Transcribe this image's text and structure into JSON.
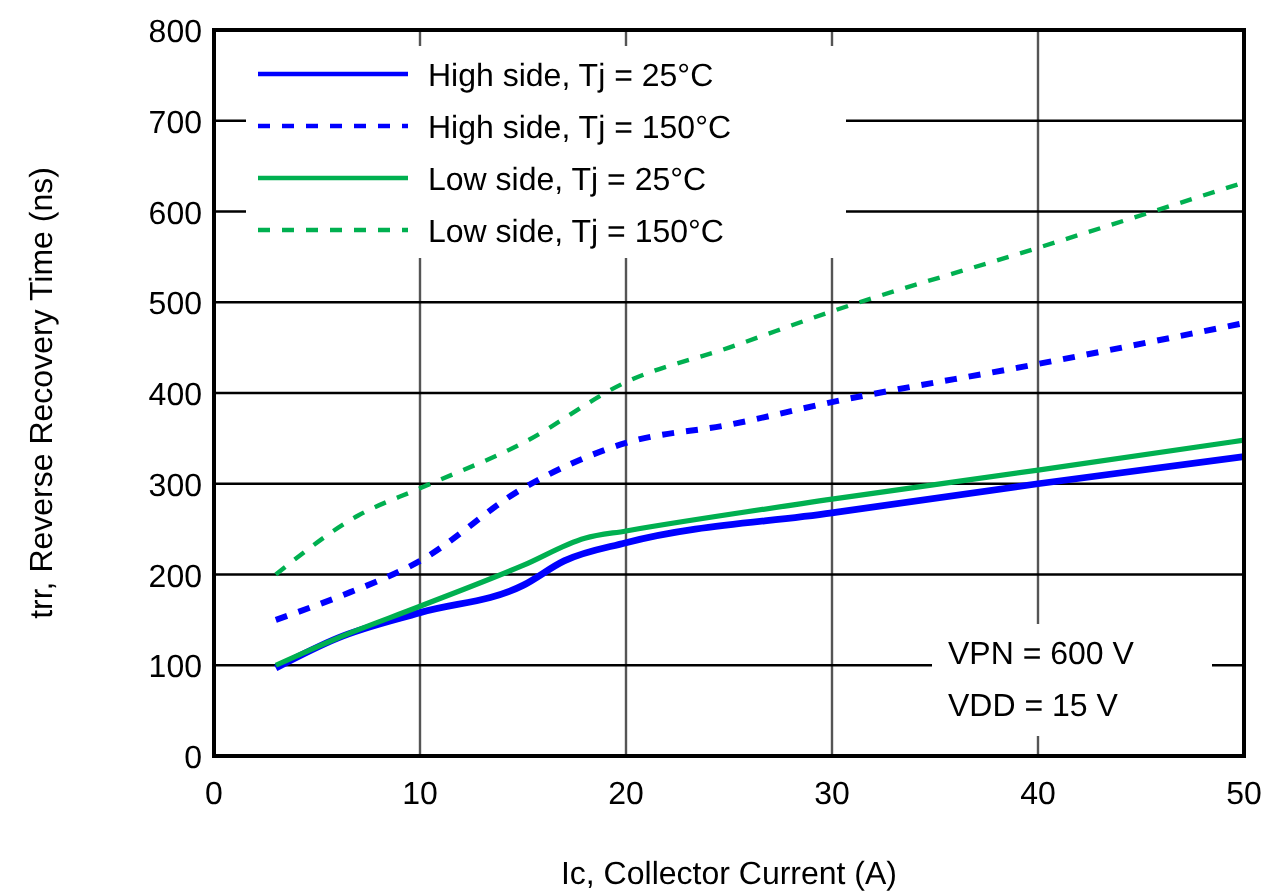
{
  "chart_data": {
    "type": "line",
    "xlabel": "Ic, Collector Current (A)",
    "ylabel": "trr, Reverse Recovery Time (ns)",
    "xlim": [
      0,
      50
    ],
    "xticks": [
      0,
      10,
      20,
      30,
      40,
      50
    ],
    "ylim": [
      0,
      800
    ],
    "yticks": [
      0,
      100,
      200,
      300,
      400,
      500,
      600,
      700,
      800
    ],
    "grid": true,
    "legend": "top left",
    "annotations": [
      "VPN = 600 V",
      "VDD = 15 V"
    ],
    "series": [
      {
        "name": "High side, Tj = 25°C",
        "color": "#0000ff",
        "line_style": "solid",
        "x": [
          3,
          6,
          10,
          15,
          17,
          20,
          30,
          40,
          50
        ],
        "values": [
          97,
          130,
          158,
          188,
          215,
          235,
          268,
          300,
          330
        ]
      },
      {
        "name": "High side, Tj = 150°C",
        "color": "#0000ff",
        "line_style": "dashed",
        "x": [
          3,
          6,
          10,
          15,
          20,
          25,
          30,
          40,
          50
        ],
        "values": [
          150,
          175,
          215,
          295,
          345,
          365,
          390,
          432,
          477
        ]
      },
      {
        "name": "Low side, Tj = 25°C",
        "color": "#00b050",
        "line_style": "solid",
        "x": [
          3,
          6,
          10,
          15,
          18,
          20,
          30,
          40,
          50
        ],
        "values": [
          100,
          130,
          165,
          210,
          240,
          248,
          283,
          315,
          348
        ]
      },
      {
        "name": "Low side, Tj = 150°C",
        "color": "#00b050",
        "line_style": "dashed",
        "x": [
          3,
          7,
          10,
          15,
          20,
          25,
          30,
          40,
          50
        ],
        "values": [
          200,
          265,
          295,
          345,
          412,
          450,
          490,
          560,
          632
        ]
      }
    ]
  }
}
